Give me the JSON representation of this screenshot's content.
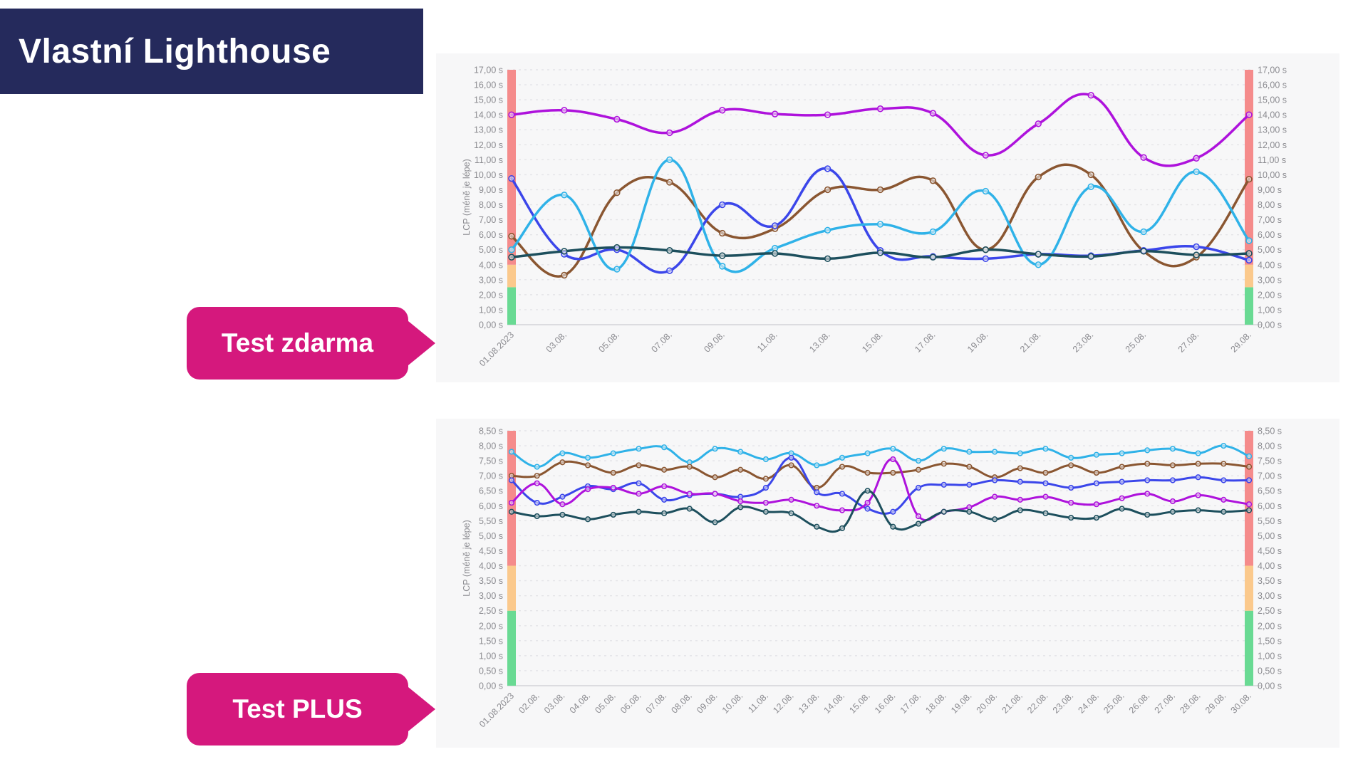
{
  "banner": {
    "title": "Vlastní Lighthouse",
    "bg_color": "#252a5c"
  },
  "tags": [
    {
      "label": "Test zdarma",
      "color": "#d5187d"
    },
    {
      "label": "Test PLUS",
      "color": "#d5187d"
    }
  ],
  "theme": {
    "card_bg": "#f7f7f8",
    "grid_color": "#e4e4e7",
    "baseline_color": "#dcdce0",
    "tick_text_color": "#8b8b90"
  },
  "chart_data": [
    {
      "type": "line",
      "title": "",
      "ylabel": "LCP (méně je lépe)",
      "unit_suffix": " s",
      "ylim": [
        0,
        17
      ],
      "ytick_step": 1,
      "grid": true,
      "legend": "none",
      "bands": [
        {
          "from": 0,
          "to": 2.5,
          "color": "#69da93",
          "meaning": "good"
        },
        {
          "from": 2.5,
          "to": 4,
          "color": "#fbc98c",
          "meaning": "needs-improvement"
        },
        {
          "from": 4,
          "to": null,
          "color": "#f58b8b",
          "meaning": "poor"
        }
      ],
      "categories": [
        "01.08.2023",
        "03.08.",
        "05.08.",
        "07.08.",
        "09.08.",
        "11.08.",
        "13.08.",
        "15.08.",
        "17.08.",
        "19.08.",
        "21.08.",
        "23.08.",
        "25.08.",
        "27.08.",
        "29.08."
      ],
      "series": [
        {
          "name": "purple",
          "color": "#ae12dc",
          "values": [
            14.0,
            14.3,
            13.7,
            12.8,
            14.3,
            14.05,
            14.0,
            14.4,
            14.1,
            11.3,
            13.4,
            15.3,
            11.15,
            11.1,
            14.0
          ]
        },
        {
          "name": "brown",
          "color": "#8a5631",
          "values": [
            5.9,
            3.3,
            8.8,
            9.5,
            6.1,
            6.4,
            9.0,
            9.0,
            9.6,
            5.0,
            9.85,
            10.0,
            4.9,
            4.5,
            9.7
          ]
        },
        {
          "name": "blue",
          "color": "#3b46ea",
          "values": [
            9.75,
            4.7,
            5.0,
            3.6,
            8.0,
            6.6,
            10.4,
            4.95,
            4.55,
            4.4,
            4.7,
            4.6,
            4.95,
            5.2,
            4.3
          ]
        },
        {
          "name": "cyan",
          "color": "#2fb2e8",
          "values": [
            5.0,
            8.65,
            3.7,
            11.0,
            3.9,
            5.1,
            6.3,
            6.7,
            6.2,
            8.9,
            4.0,
            9.2,
            6.2,
            10.2,
            5.6
          ]
        },
        {
          "name": "teal",
          "color": "#1d4f5d",
          "values": [
            4.5,
            4.9,
            5.15,
            4.95,
            4.6,
            4.75,
            4.4,
            4.8,
            4.5,
            5.0,
            4.7,
            4.55,
            4.9,
            4.65,
            4.75
          ]
        }
      ]
    },
    {
      "type": "line",
      "title": "",
      "ylabel": "LCP (méně je lépe)",
      "unit_suffix": " s",
      "ylim": [
        0,
        8.5
      ],
      "ytick_step": 0.5,
      "grid": true,
      "legend": "none",
      "bands": [
        {
          "from": 0,
          "to": 2.5,
          "color": "#69da93",
          "meaning": "good"
        },
        {
          "from": 2.5,
          "to": 4,
          "color": "#fbc98c",
          "meaning": "needs-improvement"
        },
        {
          "from": 4,
          "to": null,
          "color": "#f58b8b",
          "meaning": "poor"
        }
      ],
      "categories": [
        "01.08.2023",
        "02.08.",
        "03.08.",
        "04.08.",
        "05.08.",
        "06.08.",
        "07.08.",
        "08.08.",
        "09.08.",
        "10.08.",
        "11.08.",
        "12.08.",
        "13.08.",
        "14.08.",
        "15.08.",
        "16.08.",
        "17.08.",
        "18.08.",
        "19.08.",
        "20.08.",
        "21.08.",
        "22.08.",
        "23.08.",
        "24.08.",
        "25.08.",
        "26.08.",
        "27.08.",
        "28.08.",
        "29.08.",
        "30.08."
      ],
      "series": [
        {
          "name": "cyan",
          "color": "#2fb2e8",
          "values": [
            7.8,
            7.3,
            7.75,
            7.6,
            7.75,
            7.9,
            7.95,
            7.45,
            7.9,
            7.8,
            7.55,
            7.75,
            7.35,
            7.6,
            7.75,
            7.9,
            7.5,
            7.9,
            7.8,
            7.8,
            7.75,
            7.9,
            7.6,
            7.7,
            7.75,
            7.85,
            7.9,
            7.75,
            8.0,
            7.65
          ]
        },
        {
          "name": "brown",
          "color": "#8a5631",
          "values": [
            7.0,
            7.0,
            7.45,
            7.35,
            7.1,
            7.35,
            7.2,
            7.3,
            6.95,
            7.2,
            6.9,
            7.35,
            6.6,
            7.3,
            7.1,
            7.1,
            7.2,
            7.4,
            7.3,
            6.95,
            7.25,
            7.1,
            7.35,
            7.1,
            7.3,
            7.4,
            7.35,
            7.4,
            7.4,
            7.3
          ]
        },
        {
          "name": "blue",
          "color": "#3b46ea",
          "values": [
            6.85,
            6.1,
            6.3,
            6.65,
            6.55,
            6.75,
            6.2,
            6.35,
            6.4,
            6.3,
            6.6,
            7.6,
            6.45,
            6.4,
            5.9,
            5.8,
            6.6,
            6.7,
            6.7,
            6.85,
            6.8,
            6.75,
            6.6,
            6.75,
            6.8,
            6.85,
            6.85,
            6.95,
            6.85,
            6.85
          ]
        },
        {
          "name": "magenta",
          "color": "#ae12dc",
          "values": [
            6.1,
            6.75,
            6.05,
            6.55,
            6.6,
            6.4,
            6.65,
            6.4,
            6.4,
            6.15,
            6.1,
            6.2,
            6.0,
            5.85,
            6.1,
            7.55,
            5.65,
            5.8,
            5.95,
            6.3,
            6.2,
            6.3,
            6.1,
            6.05,
            6.25,
            6.4,
            6.15,
            6.35,
            6.2,
            6.05
          ]
        },
        {
          "name": "teal",
          "color": "#1d4f5d",
          "values": [
            5.8,
            5.65,
            5.7,
            5.55,
            5.7,
            5.8,
            5.75,
            5.9,
            5.45,
            5.95,
            5.8,
            5.75,
            5.3,
            5.25,
            6.5,
            5.3,
            5.4,
            5.8,
            5.8,
            5.55,
            5.85,
            5.75,
            5.6,
            5.6,
            5.9,
            5.7,
            5.8,
            5.85,
            5.8,
            5.85
          ]
        }
      ]
    }
  ]
}
